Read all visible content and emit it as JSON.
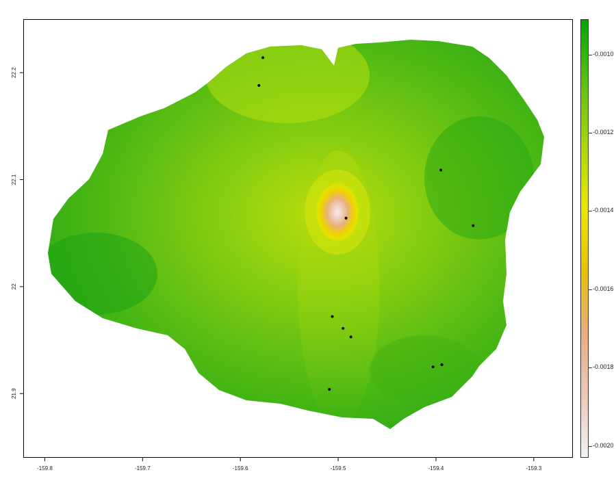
{
  "map": {
    "x_ticks": [
      {
        "value": -159.8,
        "label": "-159.8"
      },
      {
        "value": -159.7,
        "label": "-159.7"
      },
      {
        "value": -159.6,
        "label": "-159.6"
      },
      {
        "value": -159.5,
        "label": "-159.5"
      },
      {
        "value": -159.4,
        "label": "-159.4"
      },
      {
        "value": -159.3,
        "label": "-159.3"
      }
    ],
    "y_ticks": [
      {
        "value": 22.2,
        "label": "22.2"
      },
      {
        "value": 22.1,
        "label": "22.1"
      },
      {
        "value": 22.0,
        "label": "22"
      },
      {
        "value": 21.9,
        "label": "21.9"
      }
    ],
    "xlim": [
      -159.822,
      -159.26
    ],
    "ylim": [
      21.84,
      22.25
    ],
    "points": [
      {
        "lon": -159.577,
        "lat": 22.214
      },
      {
        "lon": -159.581,
        "lat": 22.188
      },
      {
        "lon": -159.395,
        "lat": 22.109
      },
      {
        "lon": -159.492,
        "lat": 22.064
      },
      {
        "lon": -159.362,
        "lat": 22.057
      },
      {
        "lon": -159.506,
        "lat": 21.972
      },
      {
        "lon": -159.495,
        "lat": 21.961
      },
      {
        "lon": -159.487,
        "lat": 21.953
      },
      {
        "lon": -159.394,
        "lat": 21.927
      },
      {
        "lon": -159.403,
        "lat": 21.925
      },
      {
        "lon": -159.509,
        "lat": 21.904
      }
    ],
    "colors": {
      "land_high": "#2eaa14",
      "land_mid": "#7dcb10",
      "land_low": "#cfe20a",
      "peak_yellow": "#f0e000",
      "peak_orange": "#e9b27a",
      "peak_center": "#f6ece8",
      "point": "#000000"
    }
  },
  "legend": {
    "labels": [
      {
        "value": -0.001,
        "label": "-0.0010"
      },
      {
        "value": -0.0012,
        "label": "-0.0012"
      },
      {
        "value": -0.0014,
        "label": "-0.0014"
      },
      {
        "value": -0.0016,
        "label": "-0.0016"
      },
      {
        "value": -0.0018,
        "label": "-0.0018"
      },
      {
        "value": -0.002,
        "label": "-0.0020"
      }
    ],
    "range": [
      -0.00203,
      -0.00091
    ],
    "gradient": [
      "#f2f2f2",
      "#ecc8b8",
      "#e9ad7e",
      "#e8c200",
      "#ebe700",
      "#a8d60a",
      "#60c010",
      "#00a600"
    ]
  }
}
